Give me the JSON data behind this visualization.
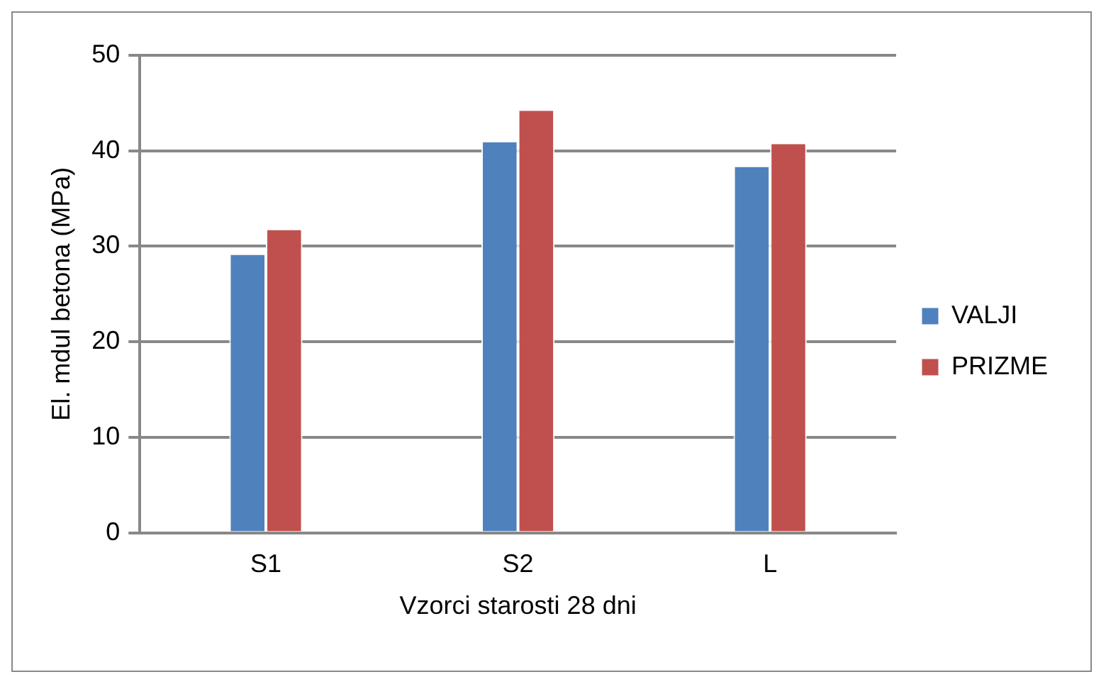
{
  "chart_data": {
    "type": "bar",
    "xlabel": "Vzorci starosti 28 dni",
    "ylabel": "El. mdul betona (MPa)",
    "categories": [
      "S1",
      "S2",
      "L"
    ],
    "series": [
      {
        "name": "VALJI",
        "color": "#4f81bd",
        "values": [
          29.1,
          40.9,
          38.3
        ]
      },
      {
        "name": "PRIZME",
        "color": "#c0504d",
        "values": [
          31.7,
          44.2,
          40.7
        ]
      }
    ],
    "ylim": [
      0,
      50
    ],
    "yticks": [
      0,
      10,
      20,
      30,
      40,
      50
    ],
    "grid": "y",
    "legend": "right"
  }
}
